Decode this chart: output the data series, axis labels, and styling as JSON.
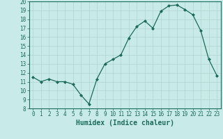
{
  "x": [
    0,
    1,
    2,
    3,
    4,
    5,
    6,
    7,
    8,
    9,
    10,
    11,
    12,
    13,
    14,
    15,
    16,
    17,
    18,
    19,
    20,
    21,
    22,
    23
  ],
  "y": [
    11.5,
    11.0,
    11.3,
    11.0,
    11.0,
    10.7,
    9.5,
    8.5,
    11.3,
    13.0,
    13.5,
    14.0,
    15.9,
    17.2,
    17.8,
    17.0,
    18.9,
    19.5,
    19.6,
    19.1,
    18.5,
    16.7,
    13.5,
    11.7
  ],
  "line_color": "#1a6b5a",
  "marker": "D",
  "marker_size": 2,
  "bg_color": "#c8eae8",
  "grid_color": "#b0d4d0",
  "xlabel": "Humidex (Indice chaleur)",
  "ylim": [
    8,
    20
  ],
  "xlim": [
    -0.5,
    23.5
  ],
  "yticks": [
    8,
    9,
    10,
    11,
    12,
    13,
    14,
    15,
    16,
    17,
    18,
    19,
    20
  ],
  "xticks": [
    0,
    1,
    2,
    3,
    4,
    5,
    6,
    7,
    8,
    9,
    10,
    11,
    12,
    13,
    14,
    15,
    16,
    17,
    18,
    19,
    20,
    21,
    22,
    23
  ],
  "tick_color": "#1a6b5a",
  "label_fontsize": 5.5,
  "xlabel_fontsize": 7,
  "spine_color": "#1a6b5a"
}
